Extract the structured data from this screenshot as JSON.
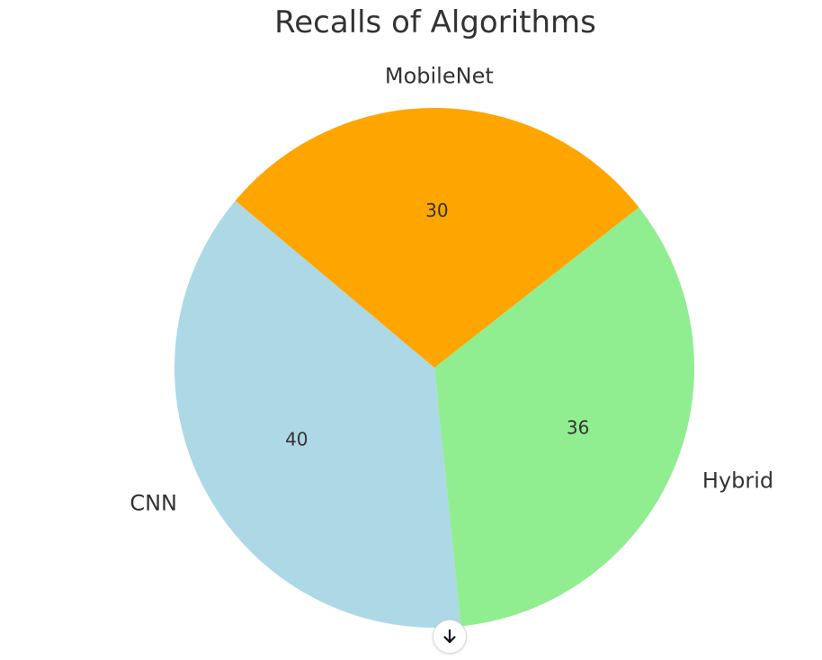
{
  "chart_data": {
    "type": "pie",
    "title": "Recalls of Algorithms",
    "slices": [
      {
        "label": "MobileNet",
        "value": 30,
        "color": "#FFA500"
      },
      {
        "label": "Hybrid",
        "value": 36,
        "color": "#90EE90"
      },
      {
        "label": "CNN",
        "value": 40,
        "color": "#ADD8E6"
      }
    ],
    "start_angle_deg": 140,
    "direction": "clockwise",
    "value_labels": "raw"
  },
  "controls": {
    "scroll_down_icon": "arrow-down-icon"
  }
}
